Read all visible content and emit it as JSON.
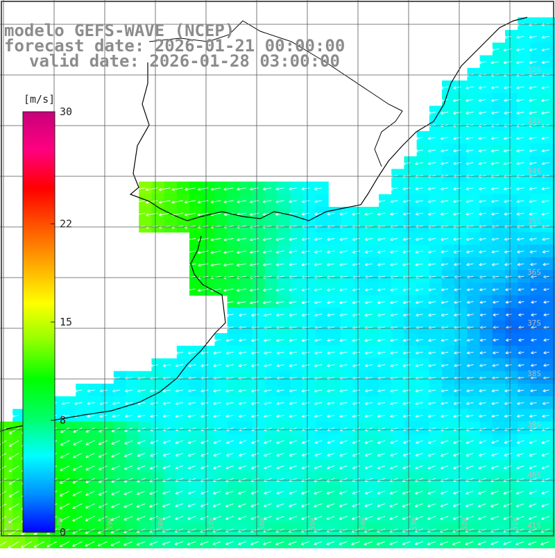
{
  "header": {
    "line1": "modelo GEFS-WAVE (NCEP)",
    "line2": "forecast date: 2026-01-21 00:00:00",
    "line3": "valid date: 2026-01-28 03:00:00"
  },
  "colorbar": {
    "unit": "[m/s]",
    "ticks": [
      "30",
      "22",
      "15",
      "8",
      "0"
    ],
    "tick_values": [
      30,
      22,
      15,
      8,
      0
    ],
    "range": [
      0,
      30
    ],
    "colors": [
      "#0000ff",
      "#0090ff",
      "#00ffff",
      "#00ff66",
      "#00ff00",
      "#90ff00",
      "#ffff00",
      "#ffaa00",
      "#ff5500",
      "#ff0000",
      "#ff0080",
      "#c8007a"
    ]
  },
  "axes": {
    "lat_labels": [
      "32S",
      "33S",
      "34S",
      "35S",
      "36S",
      "37S",
      "38S",
      "39S",
      "40S",
      "41S"
    ],
    "lon_labels": [
      "61W",
      "60W",
      "59W",
      "58W",
      "57W",
      "56W",
      "55W",
      "54W",
      "53W",
      "52W",
      "51W"
    ],
    "lat_range": [
      -41.5,
      -30.5
    ],
    "lon_range": [
      -61.0,
      -50.0
    ]
  },
  "grid": {
    "color": "#555555"
  },
  "arrows": {
    "color": "#ffffff"
  }
}
